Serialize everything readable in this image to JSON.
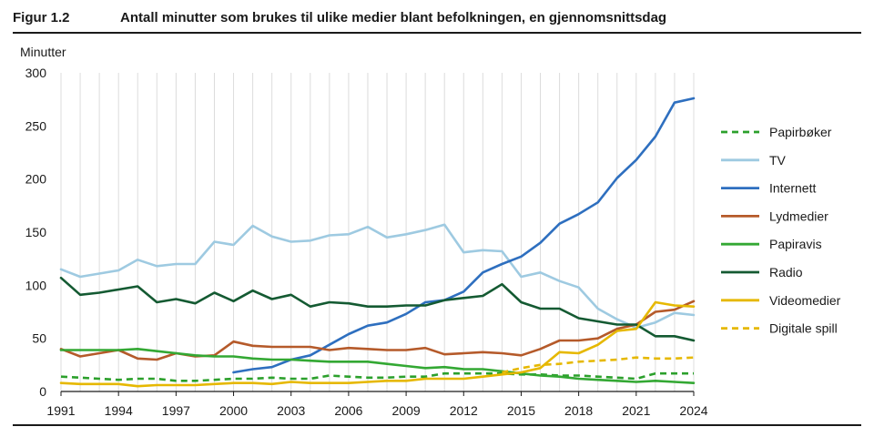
{
  "figure": {
    "label": "Figur 1.2",
    "title": "Antall minutter som brukes til ulike medier blant befolkningen, en gjennomsnittsdag"
  },
  "chart_data": {
    "type": "line",
    "ylabel": "Minutter",
    "xlabel": "",
    "xlim": [
      1991,
      2024
    ],
    "ylim": [
      0,
      300
    ],
    "x_ticks": [
      1991,
      1994,
      1997,
      2000,
      2003,
      2006,
      2009,
      2012,
      2015,
      2018,
      2021,
      2024
    ],
    "y_ticks": [
      0,
      50,
      100,
      150,
      200,
      250,
      300
    ],
    "grid": "vertical-yearly",
    "legend_position": "right",
    "x": [
      1991,
      1992,
      1993,
      1994,
      1995,
      1996,
      1997,
      1998,
      1999,
      2000,
      2001,
      2002,
      2003,
      2004,
      2005,
      2006,
      2007,
      2008,
      2009,
      2010,
      2011,
      2012,
      2013,
      2014,
      2015,
      2016,
      2017,
      2018,
      2019,
      2020,
      2021,
      2022,
      2023,
      2024
    ],
    "series": [
      {
        "name": "Papirbøker",
        "color": "#2ca02c",
        "style": "dashed",
        "values": [
          14,
          13,
          12,
          11,
          12,
          12,
          10,
          10,
          11,
          12,
          12,
          13,
          12,
          12,
          15,
          14,
          13,
          13,
          14,
          14,
          17,
          17,
          17,
          17,
          16,
          16,
          15,
          15,
          14,
          13,
          12,
          17,
          17,
          17
        ]
      },
      {
        "name": "TV",
        "color": "#9ecae1",
        "style": "solid",
        "values": [
          115,
          108,
          111,
          114,
          124,
          118,
          120,
          120,
          141,
          138,
          156,
          146,
          141,
          142,
          147,
          148,
          155,
          145,
          148,
          152,
          157,
          131,
          133,
          132,
          108,
          112,
          104,
          98,
          78,
          68,
          60,
          65,
          74,
          72
        ]
      },
      {
        "name": "Internett",
        "color": "#2e6fbf",
        "style": "solid",
        "values": [
          null,
          null,
          null,
          null,
          null,
          null,
          null,
          null,
          null,
          18,
          21,
          23,
          30,
          34,
          44,
          54,
          62,
          65,
          73,
          84,
          86,
          94,
          112,
          120,
          127,
          140,
          158,
          167,
          178,
          201,
          218,
          240,
          272,
          276
        ]
      },
      {
        "name": "Lydmedier",
        "color": "#b55a2a",
        "style": "solid",
        "values": [
          40,
          33,
          36,
          39,
          31,
          30,
          36,
          33,
          34,
          47,
          43,
          42,
          42,
          42,
          39,
          41,
          40,
          39,
          39,
          41,
          35,
          36,
          37,
          36,
          34,
          40,
          48,
          48,
          50,
          59,
          63,
          75,
          77,
          85
        ]
      },
      {
        "name": "Papiravis",
        "color": "#33a833",
        "style": "solid",
        "values": [
          39,
          39,
          39,
          39,
          40,
          38,
          36,
          34,
          33,
          33,
          31,
          30,
          30,
          29,
          28,
          28,
          28,
          26,
          24,
          22,
          23,
          21,
          21,
          19,
          17,
          15,
          14,
          12,
          11,
          10,
          9,
          10,
          9,
          8
        ]
      },
      {
        "name": "Radio",
        "color": "#145a32",
        "style": "solid",
        "values": [
          107,
          91,
          93,
          96,
          99,
          84,
          87,
          83,
          93,
          85,
          95,
          87,
          91,
          80,
          84,
          83,
          80,
          80,
          81,
          81,
          86,
          88,
          90,
          101,
          84,
          78,
          78,
          69,
          66,
          63,
          63,
          52,
          52,
          48
        ]
      },
      {
        "name": "Videomedier",
        "color": "#e6b800",
        "style": "solid",
        "values": [
          8,
          7,
          7,
          7,
          5,
          6,
          6,
          6,
          7,
          8,
          8,
          7,
          9,
          8,
          8,
          8,
          9,
          10,
          10,
          12,
          12,
          12,
          14,
          16,
          18,
          22,
          37,
          36,
          44,
          57,
          59,
          84,
          81,
          80
        ]
      },
      {
        "name": "Digitale spill",
        "color": "#e6b800",
        "style": "dashed",
        "values": [
          null,
          null,
          null,
          null,
          null,
          null,
          null,
          null,
          null,
          null,
          null,
          null,
          null,
          null,
          null,
          null,
          null,
          null,
          null,
          null,
          null,
          null,
          null,
          18,
          22,
          25,
          26,
          28,
          29,
          30,
          32,
          31,
          31,
          32
        ]
      }
    ]
  }
}
